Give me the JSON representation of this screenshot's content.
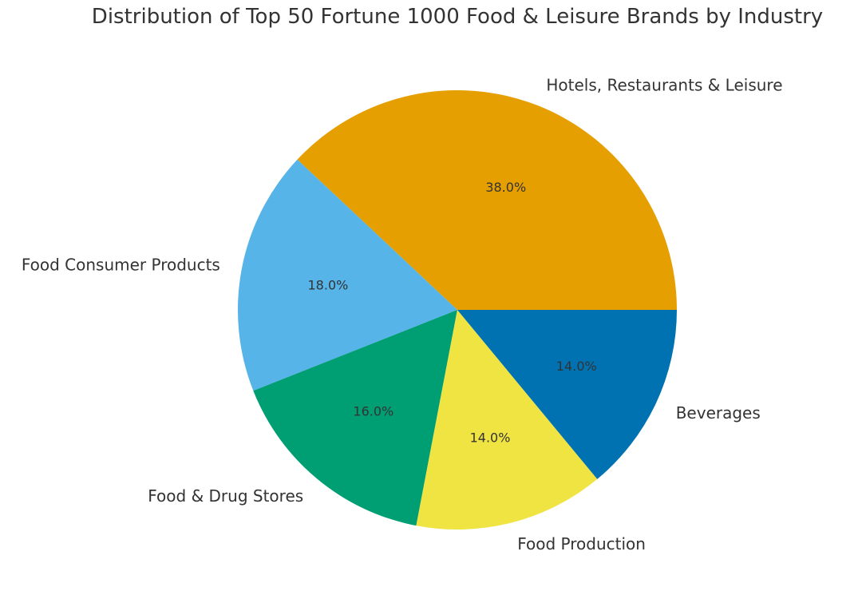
{
  "chart_data": {
    "type": "pie",
    "title": "Distribution of Top 50 Fortune 1000 Food & Leisure Brands by Industry",
    "categories": [
      "Hotels, Restaurants & Leisure",
      "Food Consumer Products",
      "Food & Drug Stores",
      "Food Production",
      "Beverages"
    ],
    "values": [
      38.0,
      18.0,
      16.0,
      14.0,
      14.0
    ],
    "value_labels": [
      "38.0%",
      "18.0%",
      "16.0%",
      "14.0%",
      "14.0%"
    ],
    "colors": [
      "#E69F00",
      "#56B4E9",
      "#009E73",
      "#F0E442",
      "#0072B2"
    ],
    "start_angle_deg": 0,
    "direction": "counterclockwise",
    "legend": "none"
  }
}
